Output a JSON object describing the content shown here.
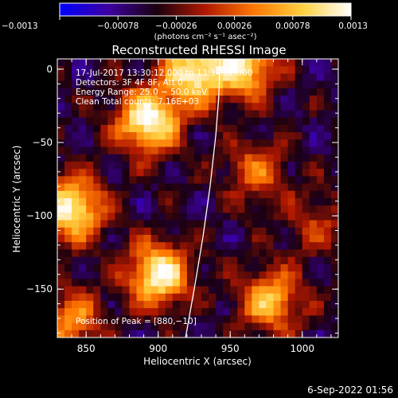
{
  "chart_data": {
    "type": "heatmap",
    "title": "Reconstructed RHESSI Image",
    "xlabel": "Heliocentric X (arcsec)",
    "ylabel": "Heliocentric Y (arcsec)",
    "xlim": [
      830,
      1025
    ],
    "ylim": [
      -183,
      7
    ],
    "x_ticks": [
      850,
      900,
      950,
      1000
    ],
    "x_tick_labels": [
      "850",
      "900",
      "950",
      "1000"
    ],
    "y_ticks": [
      0,
      -50,
      -100,
      -150
    ],
    "y_tick_labels": [
      "0",
      "−50",
      "−100",
      "−150"
    ],
    "colorbar": {
      "min": -0.0013,
      "max": 0.0013,
      "ticks": [
        -0.0013,
        -0.00078,
        -0.00026,
        0.00026,
        0.00078,
        0.0013
      ],
      "tick_labels": [
        "−0.0013",
        "−0.00078",
        "−0.00026",
        "0.00026",
        "0.00078",
        "0.0013"
      ],
      "units_label": "(photons cm⁻² s⁻¹ asec⁻²)",
      "colormap": [
        "#0000ff",
        "#3c00a0",
        "#1a0010",
        "#b01800",
        "#ff7800",
        "#ffd040",
        "#ffffff"
      ]
    },
    "annotations": [
      "17-Jul-2017 13:30:12.000 to 13:34:52.000",
      "Detectors: 3F 4F 8F, Att 0",
      "Energy Range: 25.0 − 50.0 keV",
      "Clean    Total counts: 7.16E+03"
    ],
    "peak_label": "Position of Peak = [880,−10]",
    "peak_position": [
      880,
      -10
    ],
    "limb_arc": {
      "color": "#ffffff",
      "points": [
        [
          919,
          -183
        ],
        [
          925,
          -150
        ],
        [
          931,
          -115
        ],
        [
          936,
          -80
        ],
        [
          940,
          -45
        ],
        [
          942,
          -20
        ],
        [
          943,
          7
        ]
      ]
    },
    "sources": [
      {
        "x": 893,
        "y": -35,
        "amp": 1.0
      },
      {
        "x": 925,
        "y": -2,
        "amp": 0.9
      },
      {
        "x": 960,
        "y": 2,
        "amp": 0.8
      },
      {
        "x": 840,
        "y": -95,
        "amp": 0.95
      },
      {
        "x": 900,
        "y": -140,
        "amp": 0.95
      },
      {
        "x": 978,
        "y": -158,
        "amp": 0.7
      },
      {
        "x": 840,
        "y": -172,
        "amp": 0.55
      },
      {
        "x": 968,
        "y": -70,
        "amp": 0.45
      },
      {
        "x": 1010,
        "y": -105,
        "amp": 0.3
      }
    ]
  },
  "footer": {
    "timestamp": "6-Sep-2022 01:56"
  }
}
